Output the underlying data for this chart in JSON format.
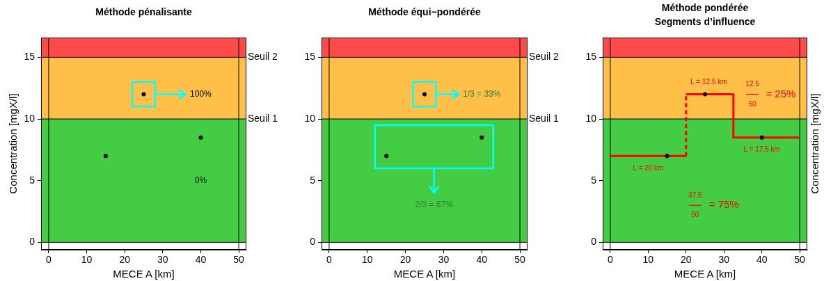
{
  "chart_data": [
    {
      "type": "scatter",
      "title": "Méthode pénalisante",
      "xlabel": "MECE A [km]",
      "ylabel": "Concentration [mgX/l]",
      "x": [
        15,
        25,
        40
      ],
      "values": [
        7,
        12,
        8.5
      ],
      "color": "#000000",
      "marker": "circle",
      "xlim": [
        -2,
        52
      ],
      "xticks": [
        0,
        10,
        20,
        30,
        40,
        50
      ],
      "ylim": [
        -0.6,
        16.6
      ],
      "yticks": [
        0,
        5,
        10,
        15
      ],
      "bands": [
        {
          "axis": "y",
          "from": 0,
          "to": 10,
          "color": "#44cc44"
        },
        {
          "axis": "y",
          "from": 10,
          "to": 15,
          "color": "#ffc04a"
        },
        {
          "axis": "y",
          "from": 15,
          "to": 16.6,
          "color": "#ff4a4a"
        }
      ],
      "ref_lines": [
        {
          "axis": "y",
          "value": 0
        },
        {
          "axis": "y",
          "value": 10,
          "label": "Seuil 1"
        },
        {
          "axis": "y",
          "value": 15,
          "label": "Seuil 2"
        },
        {
          "axis": "x",
          "value": 0
        },
        {
          "axis": "x",
          "value": 50
        }
      ],
      "annotations": [
        "100%",
        "0%"
      ]
    },
    {
      "type": "scatter",
      "title": "Méthode équi−pondérée",
      "xlabel": "MECE A [km]",
      "x": [
        15,
        25,
        40
      ],
      "values": [
        7,
        12,
        8.5
      ],
      "color": "#000000",
      "marker": "circle",
      "xlim": [
        -2,
        52
      ],
      "xticks": [
        0,
        10,
        20,
        30,
        40,
        50
      ],
      "ylim": [
        -0.6,
        16.6
      ],
      "yticks": [
        0,
        5,
        10,
        15
      ],
      "bands": [
        {
          "axis": "y",
          "from": 0,
          "to": 10,
          "color": "#44cc44"
        },
        {
          "axis": "y",
          "from": 10,
          "to": 15,
          "color": "#ffc04a"
        },
        {
          "axis": "y",
          "from": 15,
          "to": 16.6,
          "color": "#ff4a4a"
        }
      ],
      "ref_lines": [
        {
          "axis": "y",
          "value": 0
        },
        {
          "axis": "y",
          "value": 10,
          "label": "Seuil 1"
        },
        {
          "axis": "y",
          "value": 15,
          "label": "Seuil 2"
        },
        {
          "axis": "x",
          "value": 0
        },
        {
          "axis": "x",
          "value": 50
        }
      ],
      "annotations": [
        "1/3 = 33%",
        "2/3 = 67%"
      ]
    },
    {
      "type": "scatter",
      "title": "Méthode pondérée\nSegments d’influence",
      "xlabel": "MECE A [km]",
      "ylabel": "Concentration [mgX/l]",
      "series": [
        {
          "type": "line",
          "x": [
            0,
            20,
            20,
            32.5,
            32.5,
            50
          ],
          "values": [
            7,
            7,
            12,
            12,
            8.5,
            8.5
          ],
          "color": "#ff0000",
          "marker": "none"
        },
        {
          "x": [
            15,
            25,
            40
          ],
          "values": [
            7,
            12,
            8.5
          ],
          "color": "#000000",
          "marker": "circle"
        }
      ],
      "xlim": [
        -2,
        52
      ],
      "xticks": [
        0,
        10,
        20,
        30,
        40,
        50
      ],
      "ylim": [
        -0.6,
        16.6
      ],
      "yticks": [
        0,
        5,
        10,
        15
      ],
      "bands": [
        {
          "axis": "y",
          "from": 0,
          "to": 10,
          "color": "#44cc44"
        },
        {
          "axis": "y",
          "from": 10,
          "to": 15,
          "color": "#ffc04a"
        },
        {
          "axis": "y",
          "from": 15,
          "to": 16.6,
          "color": "#ff4a4a"
        }
      ],
      "ref_lines": [
        {
          "axis": "y",
          "value": 0
        },
        {
          "axis": "y",
          "value": 10
        },
        {
          "axis": "y",
          "value": 15
        },
        {
          "axis": "x",
          "value": 0
        },
        {
          "axis": "x",
          "value": 50
        }
      ],
      "annotations": [
        "L = 20 km",
        "L = 12.5 km",
        "L = 17.5 km",
        "12.5",
        "50",
        "= 25%",
        "37.5",
        "50",
        "= 75%"
      ]
    }
  ]
}
